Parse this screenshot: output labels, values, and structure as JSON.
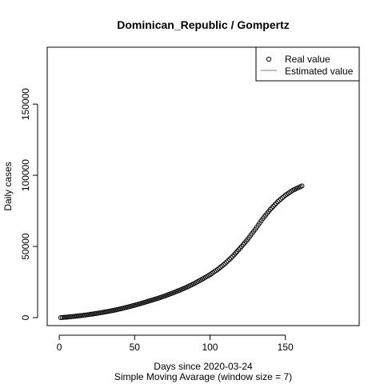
{
  "chart_data": {
    "type": "scatter",
    "title": "Dominican_Republic / Gompertz",
    "xlabel": "Days since 2020-03-24",
    "sublabel": "Simple Moving Avarage (window size = 7)",
    "ylabel": "Daily cases",
    "xlim": [
      -8,
      199
    ],
    "ylim": [
      -5600,
      190000
    ],
    "x_ticks": [
      0,
      50,
      100,
      150
    ],
    "y_ticks": [
      0,
      50000,
      100000,
      150000
    ],
    "legend_position": "top-right",
    "legend": [
      {
        "label": "Real value",
        "kind": "point",
        "color": "#000000"
      },
      {
        "label": "Estimated value",
        "kind": "line",
        "color": "#9966cc"
      }
    ],
    "real_anchor_points": [
      [
        1,
        0
      ],
      [
        5,
        350
      ],
      [
        10,
        900
      ],
      [
        15,
        1500
      ],
      [
        20,
        2200
      ],
      [
        25,
        3000
      ],
      [
        30,
        3900
      ],
      [
        35,
        4900
      ],
      [
        40,
        6000
      ],
      [
        45,
        7300
      ],
      [
        50,
        8700
      ],
      [
        55,
        10200
      ],
      [
        60,
        11800
      ],
      [
        65,
        13400
      ],
      [
        70,
        15200
      ],
      [
        75,
        17200
      ],
      [
        80,
        19300
      ],
      [
        85,
        21600
      ],
      [
        90,
        24200
      ],
      [
        95,
        27100
      ],
      [
        100,
        30200
      ],
      [
        105,
        33800
      ],
      [
        110,
        38000
      ],
      [
        115,
        43000
      ],
      [
        120,
        48800
      ],
      [
        125,
        55000
      ],
      [
        130,
        62000
      ],
      [
        135,
        69500
      ],
      [
        140,
        76000
      ],
      [
        145,
        81500
      ],
      [
        150,
        86000
      ],
      [
        155,
        89500
      ],
      [
        161,
        92500
      ]
    ],
    "grid": false
  }
}
